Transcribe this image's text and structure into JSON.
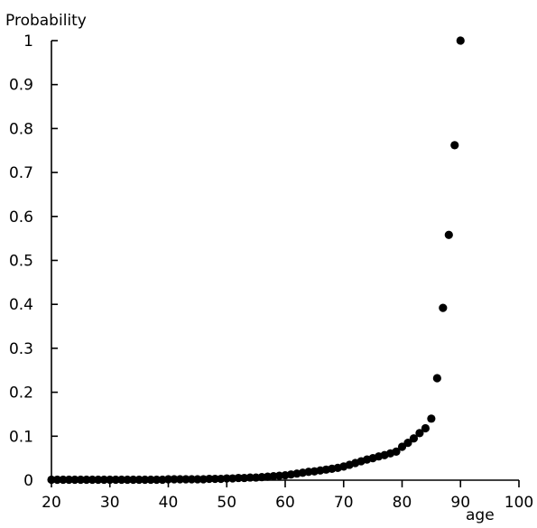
{
  "chart_data": {
    "type": "scatter",
    "title": "",
    "xlabel": "age",
    "ylabel": "Probability",
    "xlim": [
      20,
      100
    ],
    "ylim": [
      0,
      1
    ],
    "xticks": [
      "20",
      "30",
      "40",
      "50",
      "60",
      "70",
      "80",
      "90",
      "100"
    ],
    "yticks": [
      "0",
      "0.1",
      "0.2",
      "0.3",
      "0.4",
      "0.5",
      "0.6",
      "0.7",
      "0.8",
      "0.9",
      "1"
    ],
    "grid": false,
    "legend": "none",
    "marker_color": "#000000",
    "x": [
      20,
      21,
      22,
      23,
      24,
      25,
      26,
      27,
      28,
      29,
      30,
      31,
      32,
      33,
      34,
      35,
      36,
      37,
      38,
      39,
      40,
      41,
      42,
      43,
      44,
      45,
      46,
      47,
      48,
      49,
      50,
      51,
      52,
      53,
      54,
      55,
      56,
      57,
      58,
      59,
      60,
      61,
      62,
      63,
      64,
      65,
      66,
      67,
      68,
      69,
      70,
      71,
      72,
      73,
      74,
      75,
      76,
      77,
      78,
      79,
      80,
      81,
      82,
      83,
      84,
      85,
      86,
      87,
      88,
      89,
      90
    ],
    "y": [
      0.001,
      0.001,
      0.001,
      0.001,
      0.001,
      0.001,
      0.001,
      0.001,
      0.001,
      0.001,
      0.001,
      0.001,
      0.001,
      0.001,
      0.001,
      0.001,
      0.001,
      0.001,
      0.001,
      0.001,
      0.002,
      0.002,
      0.002,
      0.002,
      0.002,
      0.002,
      0.002,
      0.003,
      0.003,
      0.003,
      0.004,
      0.004,
      0.005,
      0.005,
      0.006,
      0.006,
      0.007,
      0.008,
      0.009,
      0.01,
      0.011,
      0.013,
      0.015,
      0.017,
      0.019,
      0.02,
      0.022,
      0.024,
      0.026,
      0.028,
      0.031,
      0.035,
      0.039,
      0.043,
      0.047,
      0.05,
      0.054,
      0.057,
      0.061,
      0.065,
      0.076,
      0.085,
      0.095,
      0.107,
      0.118,
      0.14,
      0.232,
      0.392,
      0.558,
      0.762,
      1.0
    ]
  }
}
